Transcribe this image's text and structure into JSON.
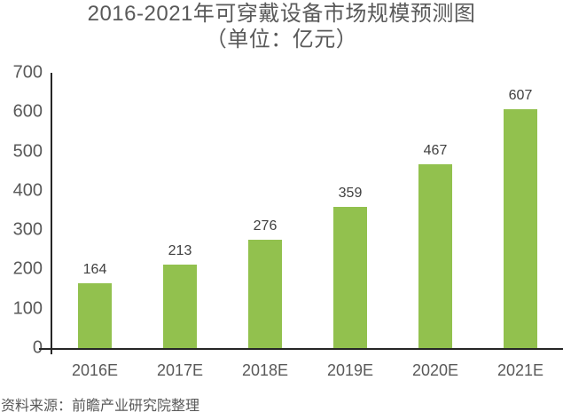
{
  "title": {
    "line1": "2016-2021年可穿戴设备市场规模预测图",
    "line2": "（单位：亿元）"
  },
  "source_note": "资料来源：前瞻产业研究院整理",
  "chart_data": {
    "type": "bar",
    "title": "2016-2021年可穿戴设备市场规模预测图",
    "subtitle": "（单位：亿元）",
    "unit": "亿元",
    "categories": [
      "2016E",
      "2017E",
      "2018E",
      "2019E",
      "2020E",
      "2021E"
    ],
    "values": [
      164,
      213,
      276,
      359,
      467,
      607
    ],
    "xlabel": "",
    "ylabel": "",
    "ylim": [
      0,
      700
    ],
    "yticks": [
      0,
      100,
      200,
      300,
      400,
      500,
      600,
      700
    ],
    "grid": false,
    "legend_position": "none",
    "data_labels_visible": true,
    "bar_color": "#92c14e"
  },
  "colors": {
    "background": "#ffffff",
    "bar": "#92c14e",
    "title_text": "#595959",
    "axis_text": "#595959",
    "value_label_text": "#404040",
    "axis_line": "#262626",
    "source_text": "#595959"
  }
}
